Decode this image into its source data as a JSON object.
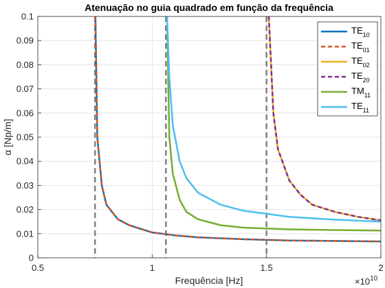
{
  "chart_data": {
    "type": "line",
    "title": "Atenuação no guia quadrado em função da frequência",
    "xlabel": "Frequência [Hz]",
    "ylabel": "α [Np/m]",
    "x_exponent_label": "×10",
    "x_exponent": "10",
    "xlim": [
      5000000000,
      20000000000
    ],
    "ylim": [
      0,
      0.1
    ],
    "xticks": [
      5000000000,
      10000000000,
      15000000000,
      20000000000
    ],
    "xtick_labels": [
      "0.5",
      "1",
      "1.5",
      "2"
    ],
    "yticks": [
      0,
      0.01,
      0.02,
      0.03,
      0.04,
      0.05,
      0.06,
      0.07,
      0.08,
      0.09,
      0.1
    ],
    "ytick_labels": [
      "0",
      "0.01",
      "0.02",
      "0.03",
      "0.04",
      "0.05",
      "0.06",
      "0.07",
      "0.08",
      "0.09",
      "0.1"
    ],
    "grid": true,
    "legend_position": "top-right",
    "cutoff_lines": [
      7500000000,
      10600000000,
      15000000000
    ],
    "cutoff_color": "#808080",
    "series": [
      {
        "name": "TE",
        "sub": "10",
        "color": "#0072BD",
        "style": "solid",
        "x": [
          7520000000,
          7600000000,
          7800000000,
          8000000000,
          8500000000,
          9000000000,
          10000000000,
          11000000000,
          12000000000,
          14000000000,
          16000000000,
          18000000000,
          20000000000
        ],
        "y": [
          0.1,
          0.05,
          0.03,
          0.022,
          0.016,
          0.0135,
          0.0105,
          0.0093,
          0.0085,
          0.0077,
          0.0072,
          0.007,
          0.0068
        ]
      },
      {
        "name": "TE",
        "sub": "01",
        "color": "#D95319",
        "style": "dashed",
        "x": [
          7520000000,
          7600000000,
          7800000000,
          8000000000,
          8500000000,
          9000000000,
          10000000000,
          11000000000,
          12000000000,
          14000000000,
          16000000000,
          18000000000,
          20000000000
        ],
        "y": [
          0.1,
          0.05,
          0.03,
          0.022,
          0.016,
          0.0135,
          0.0105,
          0.0093,
          0.0085,
          0.0077,
          0.0072,
          0.007,
          0.0068
        ]
      },
      {
        "name": "TE",
        "sub": "02",
        "color": "#EDB120",
        "style": "solid",
        "x": [
          15100000000,
          15300000000,
          15500000000,
          16000000000,
          16500000000,
          17000000000,
          18000000000,
          19000000000,
          20000000000
        ],
        "y": [
          0.1,
          0.06,
          0.045,
          0.032,
          0.026,
          0.022,
          0.019,
          0.017,
          0.0155
        ]
      },
      {
        "name": "TE",
        "sub": "20",
        "color": "#7E2F8E",
        "style": "dashed",
        "x": [
          15100000000,
          15300000000,
          15500000000,
          16000000000,
          16500000000,
          17000000000,
          18000000000,
          19000000000,
          20000000000
        ],
        "y": [
          0.1,
          0.06,
          0.045,
          0.032,
          0.026,
          0.022,
          0.019,
          0.017,
          0.0155
        ]
      },
      {
        "name": "TM",
        "sub": "11",
        "color": "#77AC30",
        "style": "solid",
        "x": [
          10650000000,
          10750000000,
          10900000000,
          11200000000,
          11500000000,
          12000000000,
          13000000000,
          14000000000,
          16000000000,
          18000000000,
          20000000000
        ],
        "y": [
          0.1,
          0.05,
          0.035,
          0.024,
          0.019,
          0.016,
          0.0135,
          0.0125,
          0.0118,
          0.0115,
          0.0113
        ]
      },
      {
        "name": "TE",
        "sub": "11",
        "color": "#4DBEEE",
        "style": "solid",
        "x": [
          10650000000,
          10750000000,
          10900000000,
          11200000000,
          11500000000,
          12000000000,
          13000000000,
          14000000000,
          16000000000,
          18000000000,
          20000000000
        ],
        "y": [
          0.1,
          0.075,
          0.055,
          0.04,
          0.033,
          0.027,
          0.022,
          0.0195,
          0.017,
          0.0158,
          0.015
        ]
      }
    ]
  }
}
